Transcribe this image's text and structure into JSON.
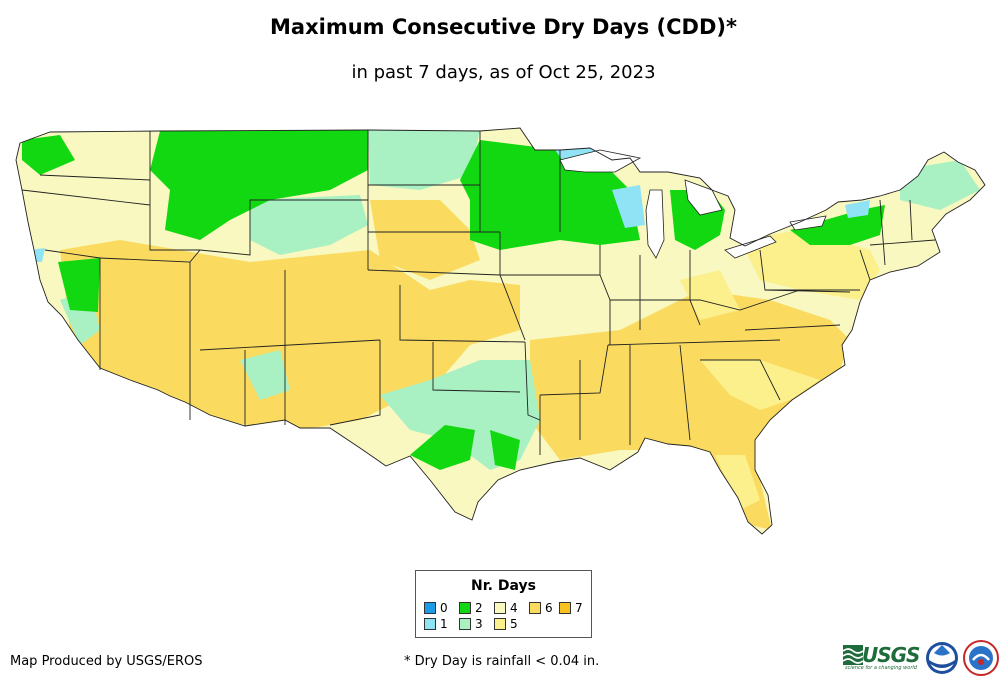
{
  "map": {
    "title": "Maximum Consecutive Dry Days (CDD)*",
    "subtitle": "in past 7 days, as of Oct 25, 2023",
    "region": "Contiguous United States"
  },
  "legend": {
    "title": "Nr. Days",
    "items": [
      {
        "label": "0",
        "color": "#1e9be6"
      },
      {
        "label": "1",
        "color": "#8fe3f5"
      },
      {
        "label": "2",
        "color": "#11d811"
      },
      {
        "label": "3",
        "color": "#a9f0c3"
      },
      {
        "label": "4",
        "color": "#f8f8c0"
      },
      {
        "label": "5",
        "color": "#fbf08c"
      },
      {
        "label": "6",
        "color": "#fadb60"
      },
      {
        "label": "7",
        "color": "#f7c221"
      }
    ]
  },
  "footer": {
    "credit": "Map Produced by USGS/EROS",
    "footnote": "* Dry Day is rainfall < 0.04 in.",
    "usgs_logo_text": "USGS",
    "usgs_tagline": "science for a changing world"
  },
  "colors": {
    "state_border": "#222222",
    "usgs_green": "#1f6b3b",
    "noaa_blue": "#1d4f9c"
  }
}
